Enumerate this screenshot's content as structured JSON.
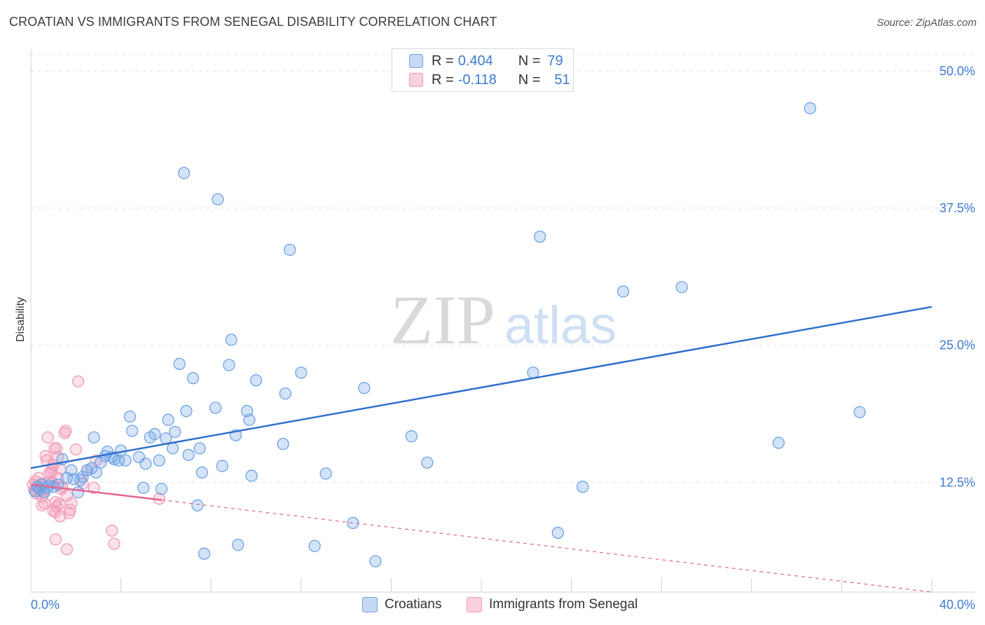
{
  "title": "CROATIAN VS IMMIGRANTS FROM SENEGAL DISABILITY CORRELATION CHART",
  "source": "Source: ZipAtlas.com",
  "watermark": {
    "zip": "ZIP",
    "atlas": "atlas"
  },
  "colors": {
    "croatians": "#6fa3e6",
    "croatians_line": "#2f6fcf",
    "senegal": "#f29bb7",
    "senegal_line": "#e0668f",
    "tick": "#3d7bd0"
  },
  "legend": {
    "row1": {
      "r_label": "R =",
      "r_value": "0.404",
      "n_label": "N =",
      "n_value": "79"
    },
    "row2": {
      "r_label": "R =",
      "r_value": "-0.118",
      "n_label": "N =",
      "n_value": "51"
    }
  },
  "chart_data": {
    "type": "scatter",
    "xlabel": "",
    "ylabel": "Disability",
    "xlim": [
      0,
      40
    ],
    "ylim": [
      2.5,
      52
    ],
    "x_tick_labels": [
      "0.0%",
      "40.0%"
    ],
    "y_ticks": [
      12.5,
      25.0,
      37.5,
      50.0
    ],
    "y_tick_labels": [
      "12.5%",
      "25.0%",
      "37.5%",
      "50.0%"
    ],
    "grid": "horizontal dashed",
    "legend_position": "top-center",
    "series": [
      {
        "name": "Croatians",
        "points": [
          [
            0.2,
            11.7
          ],
          [
            0.3,
            12.1
          ],
          [
            0.4,
            11.9
          ],
          [
            0.5,
            12.3
          ],
          [
            0.6,
            11.6
          ],
          [
            0.7,
            12.0
          ],
          [
            0.8,
            12.2
          ],
          [
            1.0,
            12.1
          ],
          [
            1.2,
            12.3
          ],
          [
            1.4,
            14.6
          ],
          [
            1.6,
            12.9
          ],
          [
            1.8,
            13.6
          ],
          [
            1.9,
            12.8
          ],
          [
            2.1,
            11.6
          ],
          [
            2.2,
            12.7
          ],
          [
            2.3,
            13.0
          ],
          [
            2.5,
            13.6
          ],
          [
            2.7,
            13.8
          ],
          [
            2.8,
            16.6
          ],
          [
            2.9,
            13.4
          ],
          [
            3.1,
            14.3
          ],
          [
            3.3,
            14.9
          ],
          [
            3.4,
            15.3
          ],
          [
            3.6,
            14.8
          ],
          [
            3.7,
            14.6
          ],
          [
            3.9,
            14.5
          ],
          [
            4.0,
            15.4
          ],
          [
            4.2,
            14.5
          ],
          [
            4.4,
            18.5
          ],
          [
            4.5,
            17.2
          ],
          [
            4.8,
            14.8
          ],
          [
            5.0,
            12.0
          ],
          [
            5.1,
            14.2
          ],
          [
            5.3,
            16.6
          ],
          [
            5.5,
            16.9
          ],
          [
            5.7,
            14.5
          ],
          [
            5.8,
            11.9
          ],
          [
            6.0,
            16.5
          ],
          [
            6.1,
            18.2
          ],
          [
            6.3,
            15.6
          ],
          [
            6.4,
            17.1
          ],
          [
            6.6,
            23.3
          ],
          [
            6.8,
            40.7
          ],
          [
            6.9,
            19.0
          ],
          [
            7.0,
            15.0
          ],
          [
            7.2,
            22.0
          ],
          [
            7.4,
            10.4
          ],
          [
            7.5,
            15.6
          ],
          [
            7.6,
            13.4
          ],
          [
            7.7,
            6.0
          ],
          [
            8.2,
            19.3
          ],
          [
            8.3,
            38.3
          ],
          [
            8.5,
            14.0
          ],
          [
            8.8,
            23.2
          ],
          [
            8.9,
            25.5
          ],
          [
            9.1,
            16.8
          ],
          [
            9.2,
            6.8
          ],
          [
            9.6,
            19.0
          ],
          [
            9.7,
            18.2
          ],
          [
            9.8,
            13.1
          ],
          [
            10.0,
            21.8
          ],
          [
            11.2,
            16.0
          ],
          [
            11.3,
            20.6
          ],
          [
            11.5,
            33.7
          ],
          [
            12.0,
            22.5
          ],
          [
            12.6,
            6.7
          ],
          [
            13.1,
            13.3
          ],
          [
            14.3,
            8.8
          ],
          [
            14.8,
            21.1
          ],
          [
            15.3,
            5.3
          ],
          [
            16.9,
            16.7
          ],
          [
            17.6,
            14.3
          ],
          [
            22.3,
            22.5
          ],
          [
            22.6,
            34.9
          ],
          [
            23.4,
            7.9
          ],
          [
            24.5,
            12.1
          ],
          [
            26.3,
            29.9
          ],
          [
            28.9,
            30.3
          ],
          [
            33.2,
            16.1
          ],
          [
            34.6,
            46.6
          ],
          [
            36.8,
            18.9
          ]
        ],
        "trend": {
          "x": [
            0,
            40
          ],
          "y": [
            13.8,
            28.5
          ]
        }
      },
      {
        "name": "Immigrants from Senegal",
        "points": [
          [
            0.1,
            12.3
          ],
          [
            0.15,
            11.8
          ],
          [
            0.2,
            12.6
          ],
          [
            0.25,
            11.5
          ],
          [
            0.3,
            12.0
          ],
          [
            0.35,
            12.9
          ],
          [
            0.4,
            11.7
          ],
          [
            0.45,
            12.4
          ],
          [
            0.5,
            10.4
          ],
          [
            0.55,
            11.6
          ],
          [
            0.6,
            10.6
          ],
          [
            0.65,
            14.9
          ],
          [
            0.7,
            14.5
          ],
          [
            0.75,
            16.6
          ],
          [
            0.8,
            13.3
          ],
          [
            0.85,
            12.6
          ],
          [
            0.9,
            13.4
          ],
          [
            0.95,
            13.8
          ],
          [
            1.0,
            9.9
          ],
          [
            1.05,
            15.6
          ],
          [
            1.1,
            10.7
          ],
          [
            1.15,
            15.6
          ],
          [
            1.2,
            12.9
          ],
          [
            1.25,
            10.5
          ],
          [
            1.3,
            13.7
          ],
          [
            1.35,
            11.9
          ],
          [
            1.4,
            12.1
          ],
          [
            1.15,
            10.3
          ],
          [
            1.1,
            9.8
          ],
          [
            1.0,
            14.1
          ],
          [
            1.5,
            17.0
          ],
          [
            1.55,
            17.2
          ],
          [
            1.6,
            11.3
          ],
          [
            1.7,
            9.7
          ],
          [
            1.75,
            10.0
          ],
          [
            1.1,
            7.3
          ],
          [
            1.6,
            6.4
          ],
          [
            1.8,
            10.6
          ],
          [
            1.3,
            9.4
          ],
          [
            2.0,
            15.5
          ],
          [
            2.1,
            21.7
          ],
          [
            2.3,
            12.4
          ],
          [
            2.5,
            13.6
          ],
          [
            2.8,
            12.0
          ],
          [
            2.9,
            14.5
          ],
          [
            3.6,
            8.1
          ],
          [
            3.7,
            6.9
          ],
          [
            5.7,
            11.0
          ],
          [
            0.95,
            12.5
          ],
          [
            0.5,
            11.2
          ],
          [
            1.2,
            14.8
          ]
        ],
        "trend": {
          "x": [
            0,
            5.8
          ],
          "y": [
            12.3,
            10.9
          ]
        },
        "trend_extension": {
          "x": [
            5.8,
            40
          ],
          "y": [
            10.9,
            2.5
          ]
        }
      }
    ]
  },
  "bottom_legend": {
    "croatians": "Croatians",
    "senegal": "Immigrants from Senegal"
  }
}
